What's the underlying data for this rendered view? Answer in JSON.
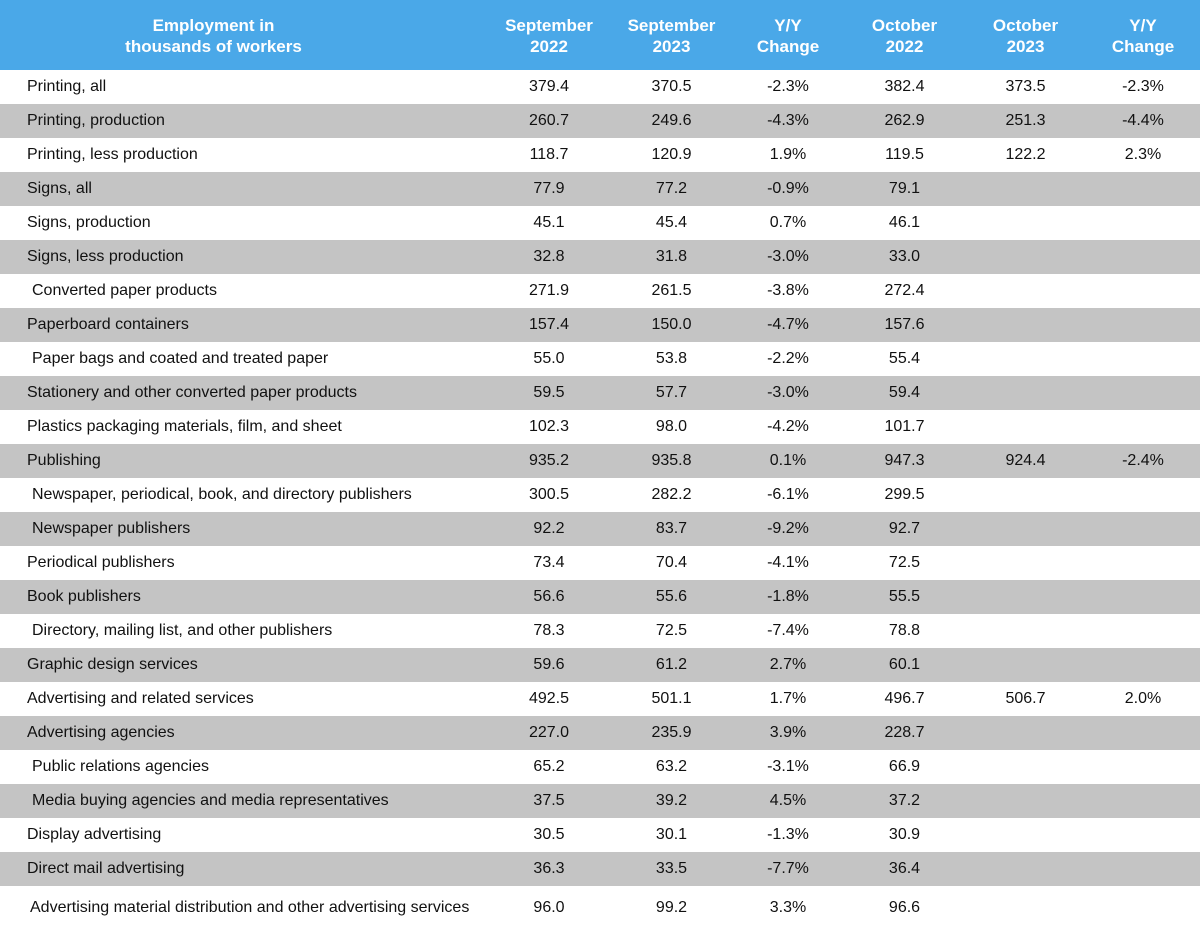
{
  "chart_data": {
    "type": "table",
    "header": {
      "label": [
        "Employment in",
        "thousands of workers"
      ],
      "cols": [
        [
          "September",
          "2022"
        ],
        [
          "September",
          "2023"
        ],
        [
          "Y/Y",
          "Change"
        ],
        [
          "October",
          "2022"
        ],
        [
          "October",
          "2023"
        ],
        [
          "Y/Y",
          "Change"
        ]
      ]
    },
    "rows": [
      {
        "label": "Printing, all",
        "values": [
          "379.4",
          "370.5",
          "-2.3%",
          "382.4",
          "373.5",
          "-2.3%"
        ]
      },
      {
        "label": "Printing, production",
        "values": [
          "260.7",
          "249.6",
          "-4.3%",
          "262.9",
          "251.3",
          "-4.4%"
        ]
      },
      {
        "label": "Printing, less production",
        "values": [
          "118.7",
          "120.9",
          "1.9%",
          "119.5",
          "122.2",
          "2.3%"
        ]
      },
      {
        "label": "Signs, all",
        "values": [
          "77.9",
          "77.2",
          "-0.9%",
          "79.1",
          "",
          ""
        ]
      },
      {
        "label": "Signs, production",
        "values": [
          "45.1",
          "45.4",
          "0.7%",
          "46.1",
          "",
          ""
        ]
      },
      {
        "label": "Signs, less production",
        "values": [
          "32.8",
          "31.8",
          "-3.0%",
          "33.0",
          "",
          ""
        ]
      },
      {
        "label": "Converted paper products",
        "indent": true,
        "values": [
          "271.9",
          "261.5",
          "-3.8%",
          "272.4",
          "",
          ""
        ]
      },
      {
        "label": "Paperboard containers",
        "values": [
          "157.4",
          "150.0",
          "-4.7%",
          "157.6",
          "",
          ""
        ]
      },
      {
        "label": "Paper bags and coated and treated paper",
        "indent": true,
        "values": [
          "55.0",
          "53.8",
          "-2.2%",
          "55.4",
          "",
          ""
        ]
      },
      {
        "label": "Stationery and other converted paper products",
        "values": [
          "59.5",
          "57.7",
          "-3.0%",
          "59.4",
          "",
          ""
        ]
      },
      {
        "label": "Plastics packaging materials, film, and sheet",
        "values": [
          "102.3",
          "98.0",
          "-4.2%",
          "101.7",
          "",
          ""
        ]
      },
      {
        "label": "Publishing",
        "values": [
          "935.2",
          "935.8",
          "0.1%",
          "947.3",
          "924.4",
          "-2.4%"
        ]
      },
      {
        "label": "Newspaper, periodical, book, and directory publishers",
        "indent": true,
        "values": [
          "300.5",
          "282.2",
          "-6.1%",
          "299.5",
          "",
          ""
        ]
      },
      {
        "label": "Newspaper publishers",
        "indent": true,
        "values": [
          "92.2",
          "83.7",
          "-9.2%",
          "92.7",
          "",
          ""
        ]
      },
      {
        "label": "Periodical publishers",
        "values": [
          "73.4",
          "70.4",
          "-4.1%",
          "72.5",
          "",
          ""
        ]
      },
      {
        "label": "Book publishers",
        "values": [
          "56.6",
          "55.6",
          "-1.8%",
          "55.5",
          "",
          ""
        ]
      },
      {
        "label": "Directory, mailing list, and other publishers",
        "indent": true,
        "values": [
          "78.3",
          "72.5",
          "-7.4%",
          "78.8",
          "",
          ""
        ]
      },
      {
        "label": "Graphic design services",
        "values": [
          "59.6",
          "61.2",
          "2.7%",
          "60.1",
          "",
          ""
        ]
      },
      {
        "label": "Advertising and related services",
        "values": [
          "492.5",
          "501.1",
          "1.7%",
          "496.7",
          "506.7",
          "2.0%"
        ]
      },
      {
        "label": "Advertising agencies",
        "values": [
          "227.0",
          "235.9",
          "3.9%",
          "228.7",
          "",
          ""
        ]
      },
      {
        "label": "Public relations agencies",
        "indent": true,
        "values": [
          "65.2",
          "63.2",
          "-3.1%",
          "66.9",
          "",
          ""
        ]
      },
      {
        "label": "Media buying agencies and media representatives",
        "indent": true,
        "values": [
          "37.5",
          "39.2",
          "4.5%",
          "37.2",
          "",
          ""
        ]
      },
      {
        "label": "Display advertising",
        "values": [
          "30.5",
          "30.1",
          "-1.3%",
          "30.9",
          "",
          ""
        ]
      },
      {
        "label": "Direct mail advertising",
        "values": [
          "36.3",
          "33.5",
          "-7.7%",
          "36.4",
          "",
          ""
        ]
      },
      {
        "label": "Advertising material distribution and other advertising services",
        "values": [
          "96.0",
          "99.2",
          "3.3%",
          "96.6",
          "",
          ""
        ]
      }
    ]
  },
  "colors": {
    "header_bg": "#4aa8e8",
    "header_text": "#ffffff",
    "stripe": "#c4c4c4",
    "row_bg": "#ffffff"
  }
}
